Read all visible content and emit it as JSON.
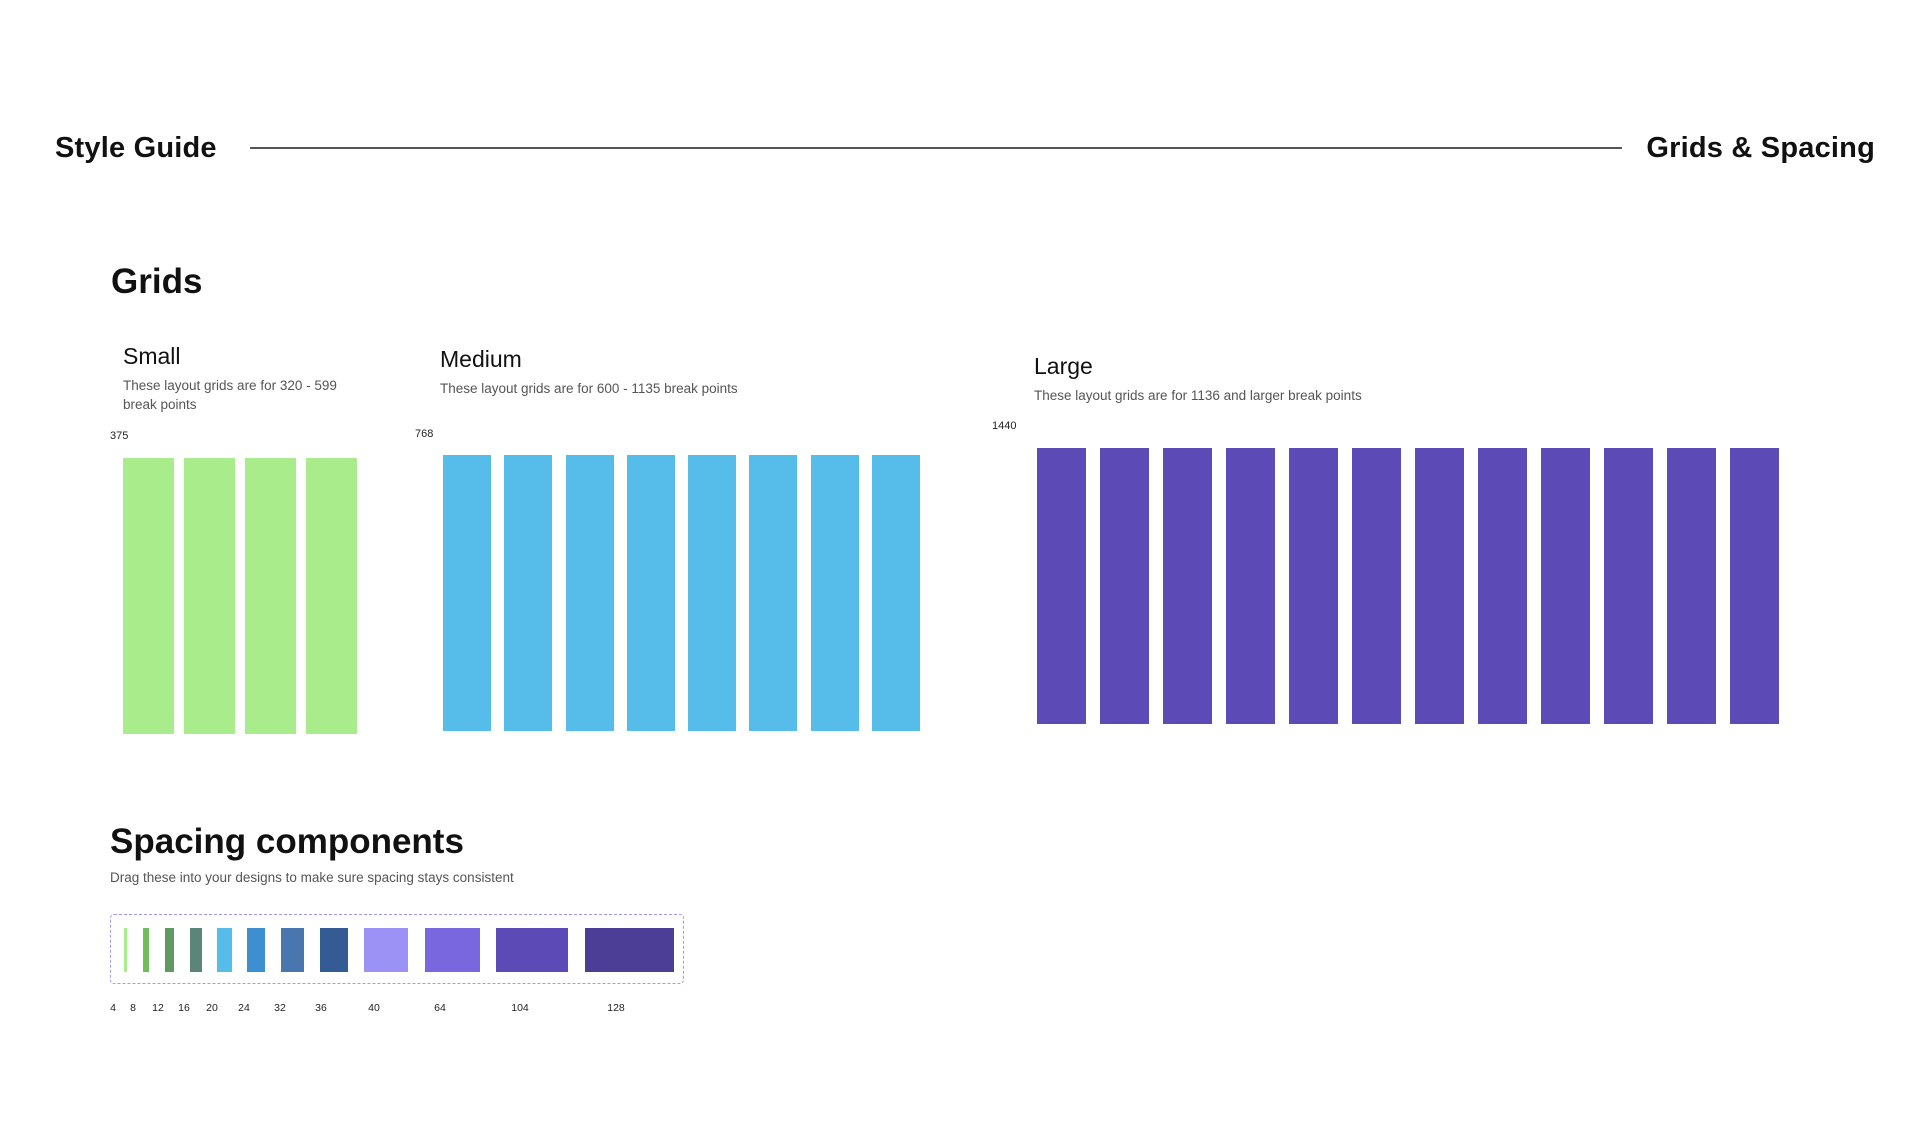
{
  "header": {
    "left_title": "Style Guide",
    "right_title": "Grids & Spacing"
  },
  "grids": {
    "title": "Grids",
    "small": {
      "title": "Small",
      "description": "These layout grids are for 320 - 599 break points",
      "breakpoint": "375",
      "columns": 4,
      "color": "#a8ec8c"
    },
    "medium": {
      "title": "Medium",
      "description": "These layout grids are for 600 - 1135 break points",
      "breakpoint": "768",
      "columns": 8,
      "color": "#56bcea"
    },
    "large": {
      "title": "Large",
      "description": "These layout grids are for 1136 and larger break points",
      "breakpoint": "1440",
      "columns": 12,
      "color": "#5c4bb6"
    }
  },
  "spacing": {
    "title": "Spacing components",
    "description": "Drag these into your designs to make sure spacing stays consistent",
    "items": [
      {
        "label": "4",
        "color": "#a8ec8c"
      },
      {
        "label": "8",
        "color": "#6fc05a"
      },
      {
        "label": "12",
        "color": "#5f9a62"
      },
      {
        "label": "16",
        "color": "#5a8578"
      },
      {
        "label": "20",
        "color": "#56bcea"
      },
      {
        "label": "24",
        "color": "#3d8fcf"
      },
      {
        "label": "32",
        "color": "#4a76b0"
      },
      {
        "label": "36",
        "color": "#355b94"
      },
      {
        "label": "40",
        "color": "#9c91f5"
      },
      {
        "label": "64",
        "color": "#7867de"
      },
      {
        "label": "104",
        "color": "#5c4bb6"
      },
      {
        "label": "128",
        "color": "#4c3d96"
      }
    ]
  }
}
